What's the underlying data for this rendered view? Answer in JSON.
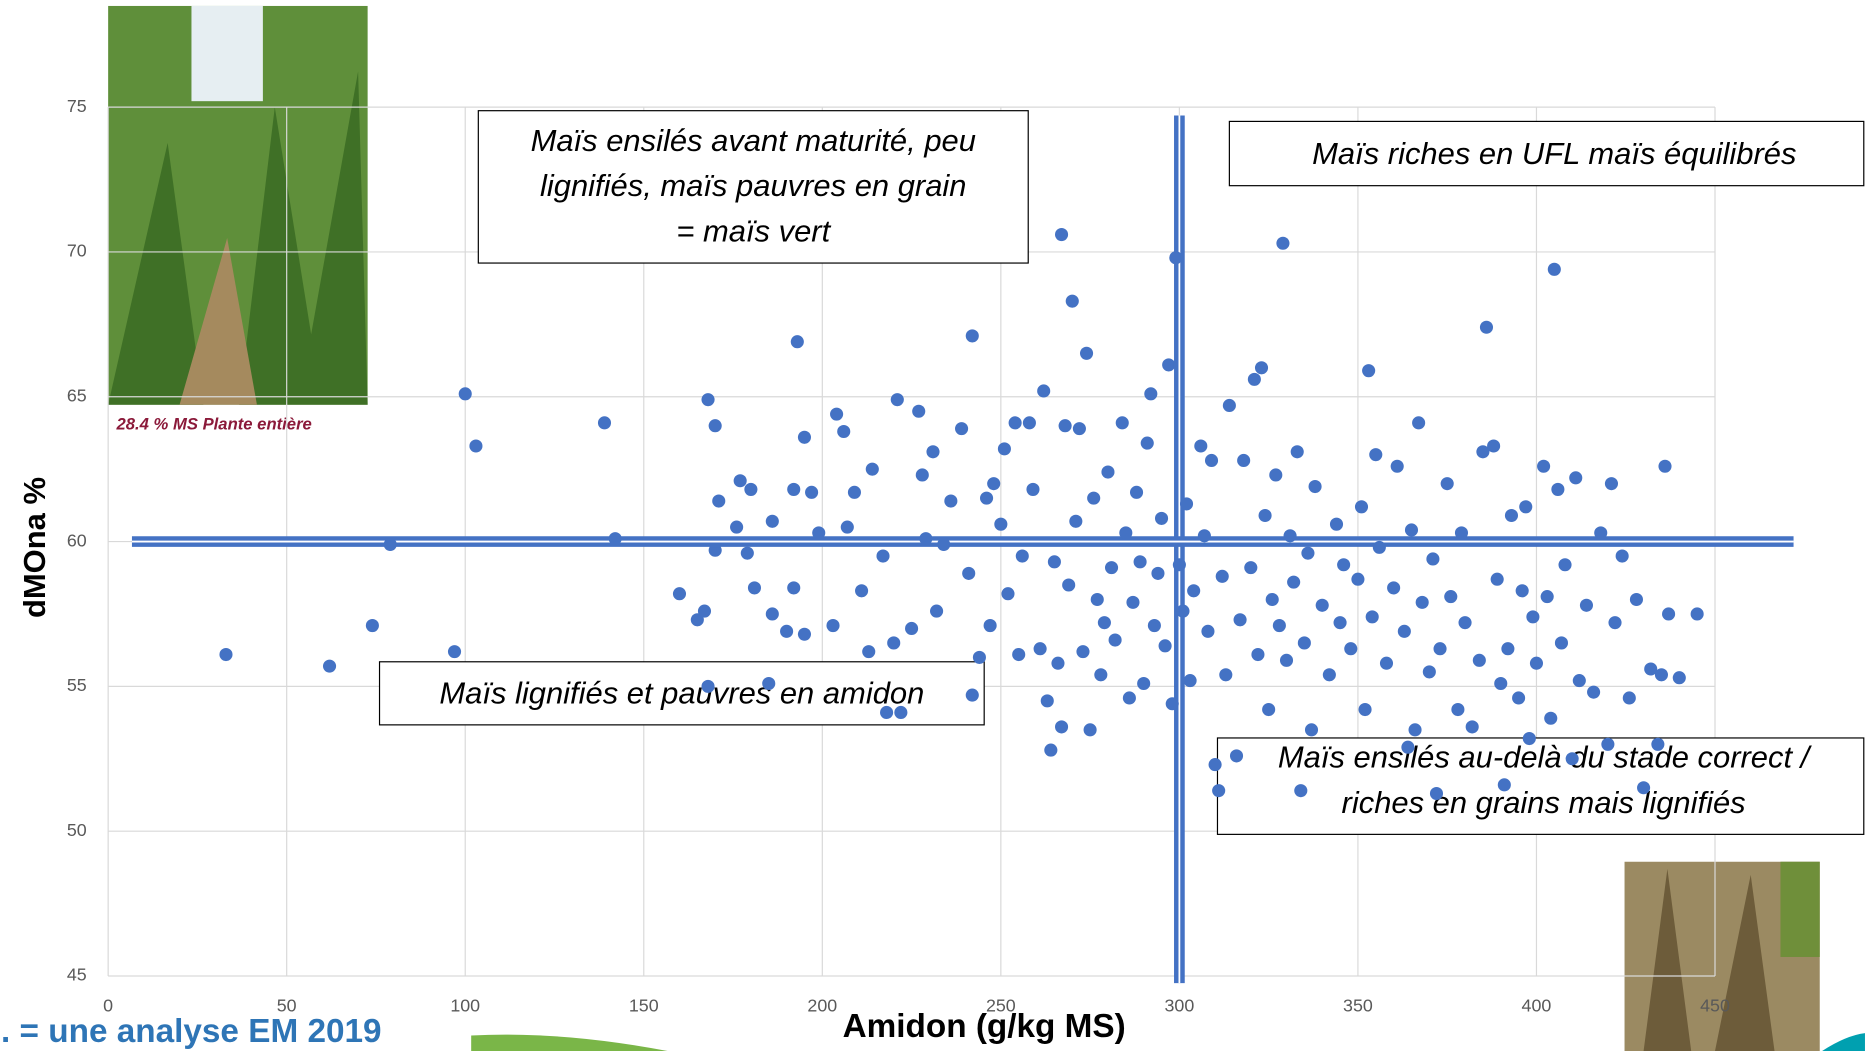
{
  "chart_data": {
    "type": "scatter",
    "x_label": "Amidon (g/kg MS)",
    "y_label": "dMOna %",
    "color": "#4472c4",
    "grid": true,
    "xlim": [
      0,
      450
    ],
    "ylim": [
      45,
      75
    ],
    "xticks": [
      0,
      50,
      100,
      150,
      200,
      250,
      300,
      350,
      400,
      450
    ],
    "yticks": [
      45,
      50,
      55,
      60,
      65,
      70,
      75
    ],
    "reference_lines": {
      "x": 300,
      "y": 60
    },
    "annotations": [
      {
        "lines": [
          "Maïs ensilés avant maturité, peu",
          "lignifiés, maïs pauvres en grain",
          "= maïs vert"
        ]
      },
      {
        "lines": [
          "Maïs riches en UFL maïs équilibrés"
        ]
      },
      {
        "lines": [
          "Maïs lignifiés et pauvres en amidon"
        ]
      },
      {
        "lines": [
          "Maïs ensilés au-delà du stade correct /",
          "riches en grains mais lignifiés"
        ]
      }
    ],
    "photo_caption": "28.4 % MS Plante entière",
    "footnote": ". = une analyse EM 2019",
    "x": [
      33,
      62,
      74,
      79,
      97,
      100,
      103,
      139,
      142,
      160,
      165,
      167,
      168,
      170,
      170,
      171,
      176,
      177,
      180,
      179,
      181,
      185,
      168,
      186,
      186,
      190,
      192,
      192,
      193,
      195,
      195,
      197,
      199,
      203,
      204,
      206,
      207,
      209,
      211,
      213,
      214,
      217,
      218,
      220,
      221,
      222,
      225,
      227,
      228,
      229,
      231,
      232,
      234,
      236,
      239,
      241,
      242,
      242,
      244,
      246,
      247,
      248,
      250,
      251,
      252,
      254,
      255,
      256,
      258,
      259,
      261,
      262,
      263,
      264,
      265,
      267,
      266,
      267,
      268,
      269,
      270,
      271,
      272,
      273,
      274,
      275,
      276,
      277,
      278,
      279,
      280,
      281,
      282,
      284,
      285,
      286,
      287,
      288,
      289,
      290,
      291,
      292,
      293,
      294,
      295,
      296,
      297,
      298,
      299,
      300,
      301,
      302,
      303,
      304,
      306,
      307,
      308,
      309,
      310,
      311,
      312,
      313,
      314,
      316,
      317,
      318,
      320,
      321,
      322,
      323,
      324,
      325,
      326,
      327,
      328,
      329,
      330,
      331,
      332,
      333,
      334,
      335,
      336,
      337,
      338,
      340,
      342,
      344,
      345,
      346,
      348,
      350,
      351,
      352,
      353,
      354,
      355,
      356,
      358,
      360,
      361,
      363,
      364,
      365,
      366,
      367,
      368,
      370,
      371,
      372,
      373,
      375,
      376,
      378,
      379,
      380,
      382,
      384,
      385,
      386,
      388,
      389,
      390,
      391,
      392,
      393,
      395,
      396,
      397,
      398,
      399,
      400,
      402,
      403,
      404,
      405,
      406,
      407,
      408,
      410,
      411,
      412,
      414,
      416,
      418,
      420,
      421,
      422,
      424,
      426,
      428,
      430,
      432,
      434,
      435,
      436,
      437,
      440,
      445
    ],
    "values": [
      56.1,
      55.7,
      57.1,
      59.9,
      56.2,
      65.1,
      63.3,
      64.1,
      60.1,
      58.2,
      57.3,
      57.6,
      64.9,
      59.7,
      64,
      61.4,
      60.5,
      62.1,
      61.8,
      59.6,
      58.4,
      55.1,
      55,
      60.7,
      57.5,
      56.9,
      61.8,
      58.4,
      66.9,
      63.6,
      56.8,
      61.7,
      60.3,
      57.1,
      64.4,
      63.8,
      60.5,
      61.7,
      58.3,
      56.2,
      62.5,
      59.5,
      54.1,
      56.5,
      64.9,
      54.1,
      57,
      64.5,
      62.3,
      60.1,
      63.1,
      57.6,
      59.9,
      61.4,
      63.9,
      58.9,
      67.1,
      54.7,
      56,
      61.5,
      57.1,
      62,
      60.6,
      63.2,
      58.2,
      64.1,
      56.1,
      59.5,
      64.1,
      61.8,
      56.3,
      65.2,
      54.5,
      52.8,
      59.3,
      53.6,
      55.8,
      70.6,
      64,
      58.5,
      68.3,
      60.7,
      63.9,
      56.2,
      66.5,
      53.5,
      61.5,
      58,
      55.4,
      57.2,
      62.4,
      59.1,
      56.6,
      64.1,
      60.3,
      54.6,
      57.9,
      61.7,
      59.3,
      55.1,
      63.4,
      65.1,
      57.1,
      58.9,
      60.8,
      56.4,
      66.1,
      54.4,
      69.8,
      59.2,
      57.6,
      61.3,
      55.2,
      58.3,
      63.3,
      60.2,
      56.9,
      62.8,
      52.3,
      51.4,
      58.8,
      55.4,
      64.7,
      52.6,
      57.3,
      62.8,
      59.1,
      65.6,
      56.1,
      66,
      60.9,
      54.2,
      58,
      62.3,
      57.1,
      70.3,
      55.9,
      60.2,
      58.6,
      63.1,
      51.4,
      56.5,
      59.6,
      53.5,
      61.9,
      57.8,
      55.4,
      60.6,
      57.2,
      59.2,
      56.3,
      58.7,
      61.2,
      54.2,
      65.9,
      57.4,
      63,
      59.8,
      55.8,
      58.4,
      62.6,
      56.9,
      52.9,
      60.4,
      53.5,
      64.1,
      57.9,
      55.5,
      59.4,
      51.3,
      56.3,
      62,
      58.1,
      54.2,
      60.3,
      57.2,
      53.6,
      55.9,
      63.1,
      67.4,
      63.3,
      58.7,
      55.1,
      51.6,
      56.3,
      60.9,
      54.6,
      58.3,
      61.2,
      53.2,
      57.4,
      55.8,
      62.6,
      58.1,
      53.9,
      69.4,
      61.8,
      56.5,
      59.2,
      52.5,
      62.2,
      55.2,
      57.8,
      54.8,
      60.3,
      53,
      62,
      57.2,
      59.5,
      54.6,
      58,
      51.5,
      55.6,
      53,
      55.4,
      62.6,
      57.5,
      55.3,
      57.5
    ]
  }
}
